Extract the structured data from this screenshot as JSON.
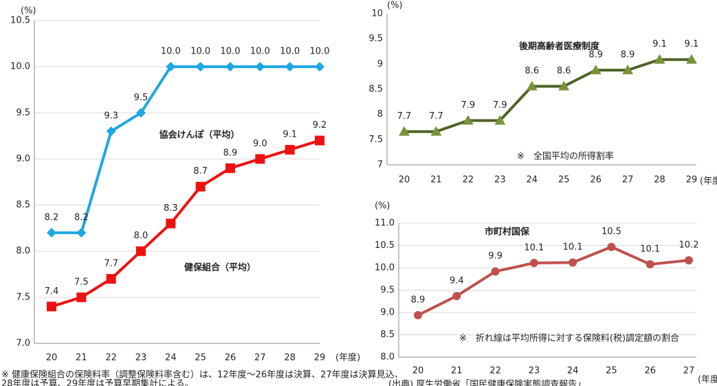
{
  "chart_data": [
    {
      "type": "line",
      "y_unit": "(%)",
      "x_label": "(年度)",
      "categories": [
        "20",
        "21",
        "22",
        "23",
        "24",
        "25",
        "26",
        "27",
        "28",
        "29"
      ],
      "ylim": [
        7,
        10.5
      ],
      "yticks": [
        {
          "value": 7,
          "label": "7.0"
        },
        {
          "value": 7.5,
          "label": "7.5"
        },
        {
          "value": 8,
          "label": "8.0"
        },
        {
          "value": 8.5,
          "label": "8.5"
        },
        {
          "value": 9,
          "label": "9.0"
        },
        {
          "value": 9.5,
          "label": "9.5"
        },
        {
          "value": 10,
          "label": "10.0"
        },
        {
          "value": 10.5,
          "label": "10.5"
        }
      ],
      "grid": true,
      "series": [
        {
          "name": "協会けんぽ（平均）",
          "color": "#1ea7e1",
          "marker": "diamond",
          "values": [
            8.2,
            8.2,
            9.3,
            9.5,
            10,
            10,
            10,
            10,
            10,
            10
          ],
          "value_labels": [
            "8.2",
            "8.2",
            "9.3",
            "9.5",
            "10.0",
            "10.0",
            "10.0",
            "10.0",
            "10.0",
            "10.0"
          ]
        },
        {
          "name": "健保組合（平均）",
          "color": "#ee1111",
          "marker": "square",
          "values": [
            7.4,
            7.5,
            7.7,
            8.0,
            8.3,
            8.7,
            8.9,
            9.0,
            9.1,
            9.2
          ],
          "value_labels": [
            "7.4",
            "7.5",
            "7.7",
            "8.0",
            "8.3",
            "8.7",
            "8.9",
            "9.0",
            "9.1",
            "9.2"
          ]
        }
      ],
      "notes": [
        "※ 健康保険組合の保険料率（調整保険料率含む）は、12年度～26年度は決算、27年度は決算見込、",
        "28年度は予算、29年度は予算早期集計による。"
      ]
    },
    {
      "type": "line",
      "title": "後期高齢者医療制度",
      "y_unit": "(%)",
      "x_label": "(年度)",
      "categories": [
        "20",
        "21",
        "22",
        "23",
        "24",
        "25",
        "26",
        "27",
        "28",
        "29"
      ],
      "ylim": [
        7,
        10
      ],
      "yticks": [
        7,
        7.5,
        8,
        8.5,
        9,
        9.5,
        10
      ],
      "grid": false,
      "series": [
        {
          "name": "後期高齢者医療制度",
          "color": "#4f6228",
          "marker_color": "#77933c",
          "marker": "triangle",
          "values": [
            7.66,
            7.66,
            7.88,
            7.88,
            8.56,
            8.56,
            8.88,
            8.88,
            9.09,
            9.09
          ],
          "value_labels": [
            "7.7",
            "7.7",
            "7.9",
            "7.9",
            "8.6",
            "8.6",
            "8.9",
            "8.9",
            "9.1",
            "9.1"
          ]
        }
      ],
      "notes": [
        "※　全国平均の所得割率"
      ]
    },
    {
      "type": "line",
      "title": "市町村国保",
      "y_unit": "(%)",
      "x_label": "(年度)",
      "categories": [
        "20",
        "21",
        "22",
        "23",
        "24",
        "25",
        "26",
        "27"
      ],
      "ylim": [
        8,
        11
      ],
      "yticks": [
        {
          "value": 8,
          "label": "8.0"
        },
        {
          "value": 8.5,
          "label": "8.5"
        },
        {
          "value": 9,
          "label": "9.0"
        },
        {
          "value": 9.5,
          "label": "9.5"
        },
        {
          "value": 10,
          "label": "10.0"
        },
        {
          "value": 10.5,
          "label": "10.5"
        },
        {
          "value": 11,
          "label": "11.0"
        }
      ],
      "grid": true,
      "series": [
        {
          "name": "市町村国保",
          "color": "#c0504d",
          "marker": "circle",
          "values": [
            8.94,
            9.37,
            9.92,
            10.11,
            10.12,
            10.47,
            10.08,
            10.17
          ],
          "value_labels": [
            "8.9",
            "9.4",
            "9.9",
            "10.1",
            "10.1",
            "10.5",
            "10.1",
            "10.2"
          ]
        }
      ],
      "notes": [
        "※　折れ線は平均所得に対する保険料(税)調定額の割合",
        "(出典) 厚生労働省「国民健康保険実態調査報告」"
      ]
    }
  ]
}
